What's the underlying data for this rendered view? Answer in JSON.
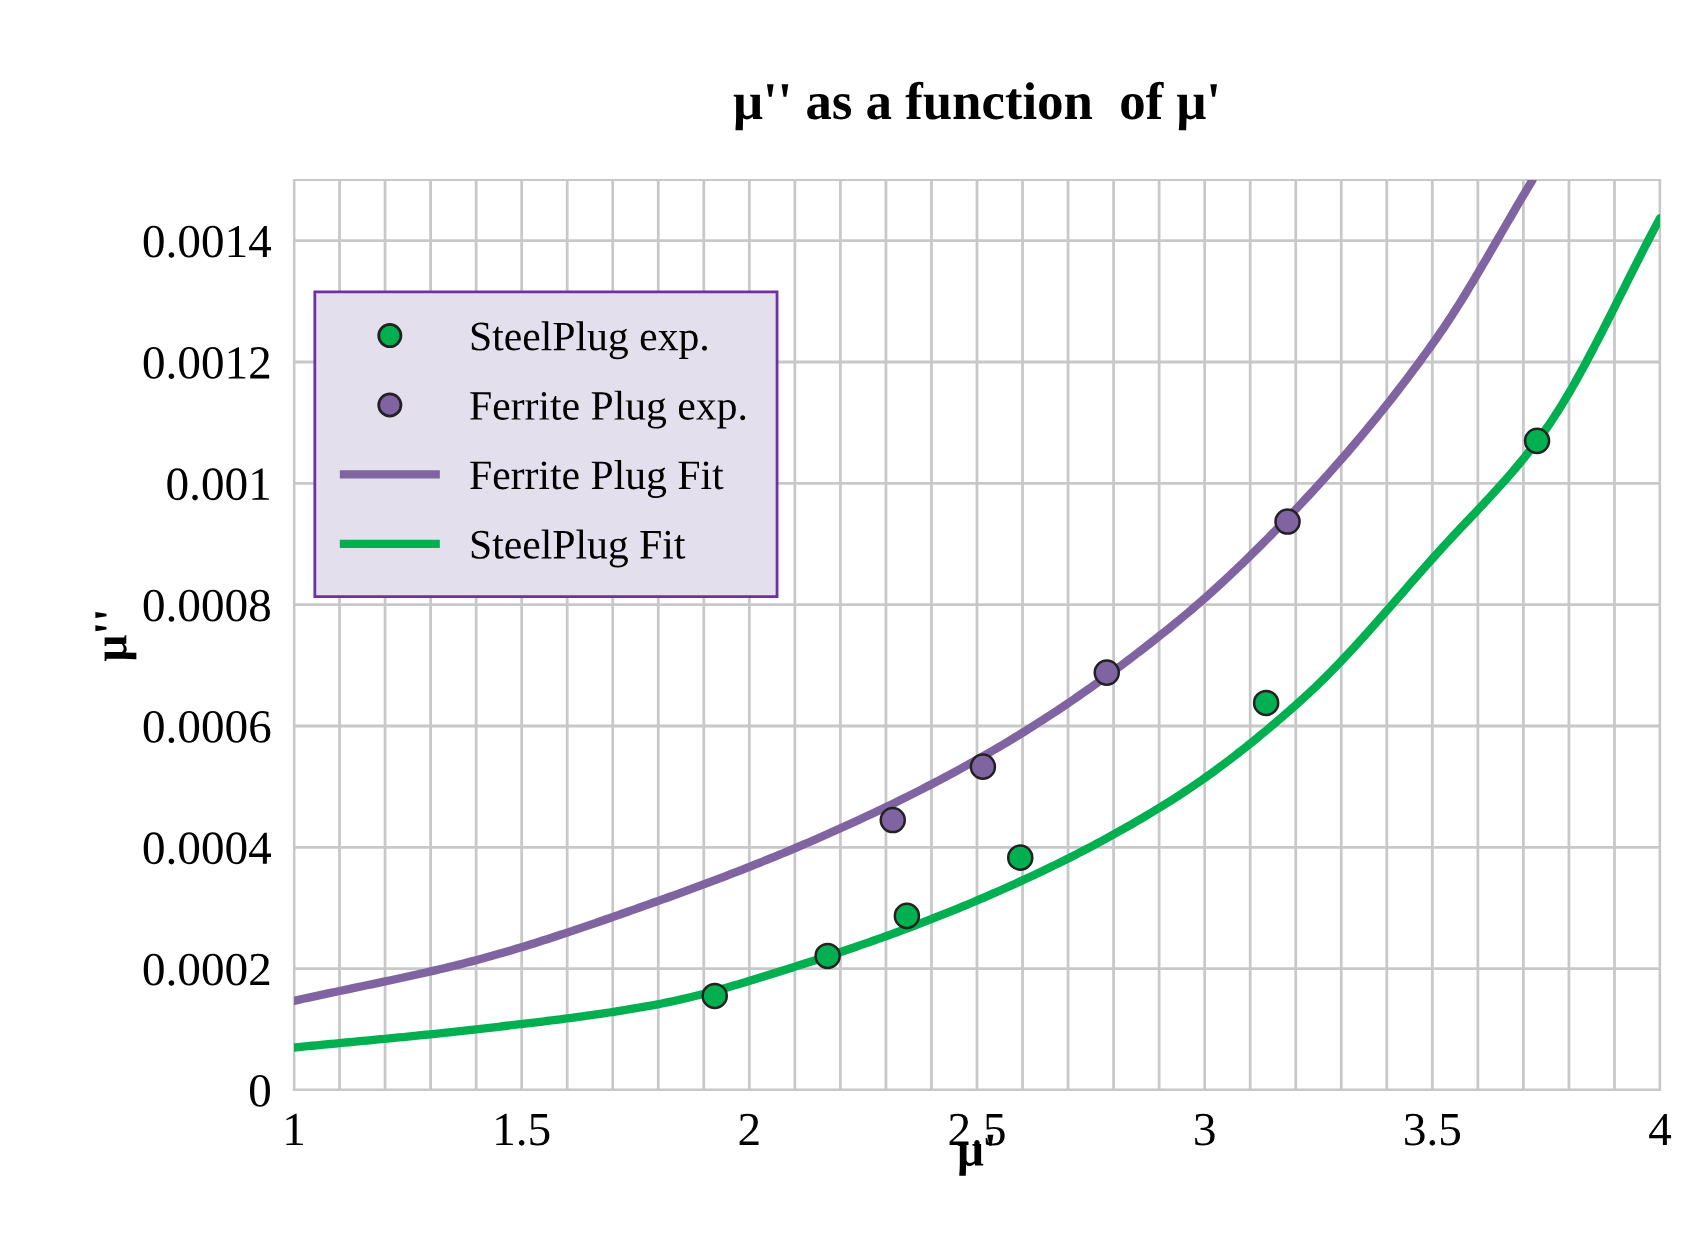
{
  "chart_data": {
    "type": "line",
    "title": "μ'' as a function  of μ'",
    "xlabel": "μ'",
    "ylabel": "μ''",
    "xlim": [
      1,
      4
    ],
    "xticks": [
      1,
      1.5,
      2,
      2.5,
      3,
      3.5,
      4
    ],
    "ylim": [
      0,
      0.0015
    ],
    "yticks": [
      {
        "value": 0,
        "label": "0"
      },
      {
        "value": 0.0002,
        "label": "0.0002"
      },
      {
        "value": 0.0004,
        "label": "0.0004"
      },
      {
        "value": 0.0006,
        "label": "0.0006"
      },
      {
        "value": 0.0008,
        "label": "0.0008"
      },
      {
        "value": 0.001,
        "label": "0.001"
      },
      {
        "value": 0.0012,
        "label": "0.0012"
      },
      {
        "value": 0.0014,
        "label": "0.0014"
      }
    ],
    "grid": true,
    "legend": "top left",
    "series": [
      {
        "name": "SteelPlug exp.",
        "type": "scatter",
        "marker": "circle",
        "color": "#00b050",
        "x": [
          1.924,
          2.172,
          2.346,
          2.595,
          3.135,
          3.73
        ],
        "values": [
          0.000155,
          0.000221,
          0.000287,
          0.000383,
          0.000638,
          0.00107
        ]
      },
      {
        "name": "Ferrite Plug exp.",
        "type": "scatter",
        "marker": "circle",
        "color": "#8064a2",
        "x": [
          2.315,
          2.513,
          2.785,
          3.182
        ],
        "values": [
          0.000445,
          0.000533,
          0.000688,
          0.000937
        ]
      },
      {
        "name": "Ferrite Plug Fit",
        "color": "#8064a2",
        "x": [
          1,
          1.4,
          1.79,
          2.145,
          2.536,
          2.93,
          3.22,
          3.51,
          3.72
        ],
        "values": [
          0.000147,
          0.000214,
          0.000309,
          0.000413,
          0.00056,
          0.000766,
          0.000973,
          0.00124,
          0.0015
        ]
      },
      {
        "name": "SteelPlug Fit",
        "color": "#00b050",
        "x": [
          1,
          1.4,
          1.79,
          2.145,
          2.536,
          2.93,
          3.22,
          3.51,
          3.75,
          4
        ],
        "values": [
          7e-05,
          0.0001,
          0.00014,
          0.000214,
          0.000324,
          0.000479,
          0.000648,
          0.000884,
          0.00109,
          0.001437
        ]
      }
    ]
  }
}
